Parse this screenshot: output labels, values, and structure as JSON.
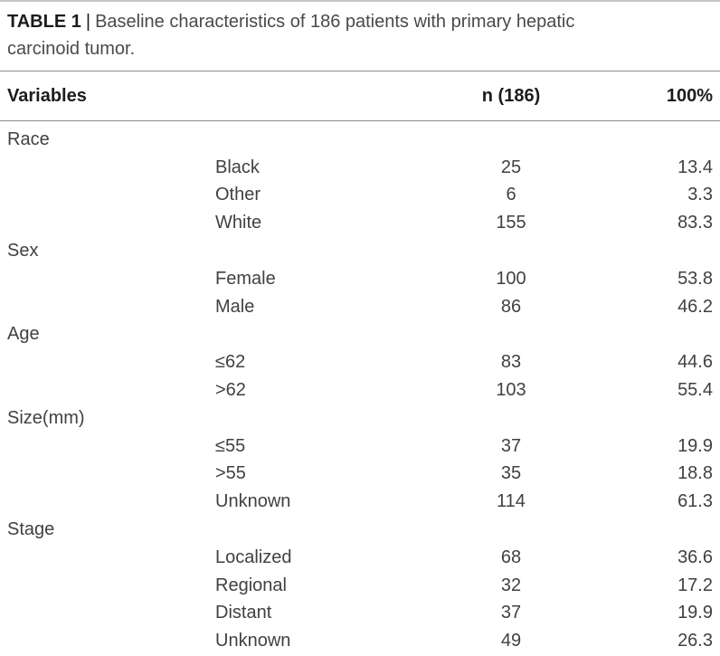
{
  "caption": {
    "label": "TABLE 1",
    "separator": "|",
    "text": "Baseline characteristics of 186 patients with primary hepatic carcinoid tumor."
  },
  "columns": [
    "Variables",
    "n (186)",
    "100%"
  ],
  "sections": [
    {
      "name": "Race",
      "rows": [
        {
          "label": "Black",
          "n": "25",
          "pct": "13.4"
        },
        {
          "label": "Other",
          "n": "6",
          "pct": "3.3"
        },
        {
          "label": "White",
          "n": "155",
          "pct": "83.3"
        }
      ]
    },
    {
      "name": "Sex",
      "rows": [
        {
          "label": "Female",
          "n": "100",
          "pct": "53.8"
        },
        {
          "label": "Male",
          "n": "86",
          "pct": "46.2"
        }
      ]
    },
    {
      "name": "Age",
      "rows": [
        {
          "label": "≤62",
          "n": "83",
          "pct": "44.6"
        },
        {
          "label": ">62",
          "n": "103",
          "pct": "55.4"
        }
      ]
    },
    {
      "name": "Size(mm)",
      "rows": [
        {
          "label": "≤55",
          "n": "37",
          "pct": "19.9"
        },
        {
          "label": ">55",
          "n": "35",
          "pct": "18.8"
        },
        {
          "label": "Unknown",
          "n": "114",
          "pct": "61.3"
        }
      ]
    },
    {
      "name": "Stage",
      "rows": [
        {
          "label": "Localized",
          "n": "68",
          "pct": "36.6"
        },
        {
          "label": "Regional",
          "n": "32",
          "pct": "17.2"
        },
        {
          "label": "Distant",
          "n": "37",
          "pct": "19.9"
        },
        {
          "label": "Unknown",
          "n": "49",
          "pct": "26.3"
        }
      ]
    }
  ],
  "colors": {
    "background": "#ffffff",
    "heading_text": "#1c1c1c",
    "body_text": "#414141",
    "caption_text": "#4a4a4a",
    "rule": "#8d8d8d",
    "rule_top": "#c6c6c6"
  }
}
